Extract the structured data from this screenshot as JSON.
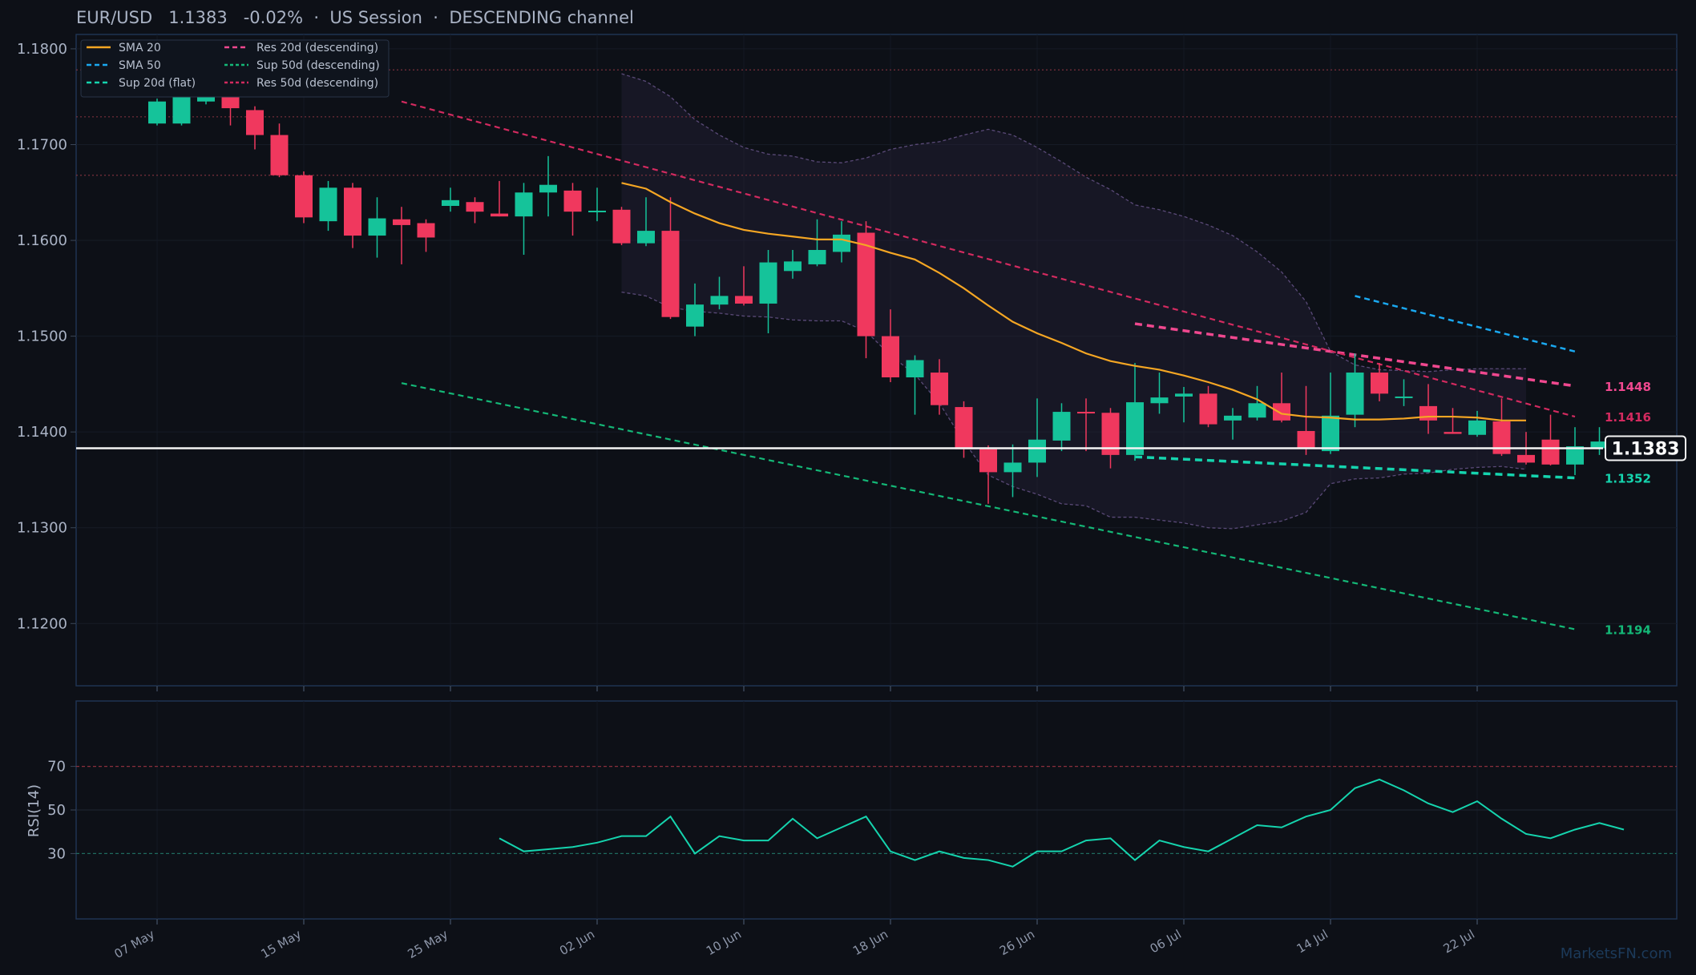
{
  "header": {
    "symbol": "EUR/USD",
    "price": "1.1383",
    "change": "-0.02%",
    "session": "US Session",
    "channel": "DESCENDING channel"
  },
  "watermark": "MarketsFN.com",
  "colors": {
    "bg": "#0d1017",
    "up": "#15c39a",
    "down": "#f0385e",
    "sma20": "#f5a623",
    "sma50": "#1aa8f0",
    "res20": "#f0488f",
    "res50": "#d22a5f",
    "sup20": "#15d4ae",
    "sup50": "#14b877",
    "rsi": "#15d4ae"
  },
  "chart_data": [
    {
      "type": "candlestick",
      "title": "EUR/USD",
      "ylim": [
        1.1135,
        1.1815
      ],
      "yticks": [
        "1.1200",
        "1.1300",
        "1.1400",
        "1.1500",
        "1.1600",
        "1.1700",
        "1.1800"
      ],
      "xticks": [
        {
          "i": 0,
          "label": "07 May"
        },
        {
          "i": 6,
          "label": "15 May"
        },
        {
          "i": 12,
          "label": "25 May"
        },
        {
          "i": 18,
          "label": "02 Jun"
        },
        {
          "i": 24,
          "label": "10 Jun"
        },
        {
          "i": 30,
          "label": "18 Jun"
        },
        {
          "i": 36,
          "label": "26 Jun"
        },
        {
          "i": 42,
          "label": "06 Jul"
        },
        {
          "i": 48,
          "label": "14 Jul"
        },
        {
          "i": 54,
          "label": "22 Jul"
        }
      ],
      "candles": [
        [
          1.1722,
          1.1748,
          1.172,
          1.1745
        ],
        [
          1.1722,
          1.179,
          1.172,
          1.1785
        ],
        [
          1.1745,
          1.179,
          1.1742,
          1.1783
        ],
        [
          1.1778,
          1.179,
          1.172,
          1.1738
        ],
        [
          1.1736,
          1.174,
          1.1695,
          1.171
        ],
        [
          1.171,
          1.1722,
          1.1666,
          1.1668
        ],
        [
          1.1668,
          1.1672,
          1.1618,
          1.1624
        ],
        [
          1.162,
          1.1662,
          1.161,
          1.1655
        ],
        [
          1.1655,
          1.166,
          1.1592,
          1.1605
        ],
        [
          1.1605,
          1.1645,
          1.1582,
          1.1623
        ],
        [
          1.1622,
          1.1635,
          1.1575,
          1.1616
        ],
        [
          1.1618,
          1.1622,
          1.1588,
          1.1603
        ],
        [
          1.1636,
          1.1655,
          1.163,
          1.1642
        ],
        [
          1.164,
          1.1645,
          1.1618,
          1.163
        ],
        [
          1.1628,
          1.1662,
          1.1625,
          1.1625
        ],
        [
          1.1625,
          1.166,
          1.1585,
          1.165
        ],
        [
          1.165,
          1.1688,
          1.1625,
          1.1658
        ],
        [
          1.1652,
          1.166,
          1.1605,
          1.163
        ],
        [
          1.163,
          1.1655,
          1.162,
          1.1631
        ],
        [
          1.1632,
          1.1635,
          1.1595,
          1.1597
        ],
        [
          1.1597,
          1.1645,
          1.1594,
          1.161
        ],
        [
          1.161,
          1.1645,
          1.1518,
          1.152
        ],
        [
          1.151,
          1.1555,
          1.15,
          1.1533
        ],
        [
          1.1533,
          1.1562,
          1.1528,
          1.1542
        ],
        [
          1.1542,
          1.1573,
          1.1532,
          1.1534
        ],
        [
          1.1534,
          1.159,
          1.1503,
          1.1577
        ],
        [
          1.1568,
          1.159,
          1.156,
          1.1578
        ],
        [
          1.1575,
          1.1622,
          1.1573,
          1.159
        ],
        [
          1.1588,
          1.162,
          1.1577,
          1.1606
        ],
        [
          1.1608,
          1.162,
          1.1477,
          1.15
        ],
        [
          1.15,
          1.1528,
          1.1452,
          1.1457
        ],
        [
          1.1457,
          1.148,
          1.1418,
          1.1475
        ],
        [
          1.1462,
          1.1476,
          1.1418,
          1.1428
        ],
        [
          1.1426,
          1.1432,
          1.1373,
          1.1382
        ],
        [
          1.1382,
          1.1386,
          1.1325,
          1.1358
        ],
        [
          1.1358,
          1.1387,
          1.1332,
          1.1368
        ],
        [
          1.1368,
          1.1435,
          1.1353,
          1.1392
        ],
        [
          1.1391,
          1.143,
          1.138,
          1.1421
        ],
        [
          1.1421,
          1.1435,
          1.138,
          1.142
        ],
        [
          1.142,
          1.1425,
          1.1362,
          1.1376
        ],
        [
          1.1376,
          1.1472,
          1.137,
          1.1431
        ],
        [
          1.143,
          1.1462,
          1.1419,
          1.1436
        ],
        [
          1.1437,
          1.1447,
          1.141,
          1.144
        ],
        [
          1.144,
          1.1448,
          1.1405,
          1.1408
        ],
        [
          1.1412,
          1.1425,
          1.1392,
          1.1417
        ],
        [
          1.1415,
          1.1448,
          1.1412,
          1.143
        ],
        [
          1.143,
          1.1462,
          1.141,
          1.1412
        ],
        [
          1.1401,
          1.1448,
          1.1376,
          1.1383
        ],
        [
          1.138,
          1.1462,
          1.1377,
          1.1417
        ],
        [
          1.1418,
          1.1482,
          1.1405,
          1.1462
        ],
        [
          1.1462,
          1.1472,
          1.1432,
          1.144
        ],
        [
          1.1436,
          1.1455,
          1.1427,
          1.1437
        ],
        [
          1.1427,
          1.145,
          1.1398,
          1.1412
        ],
        [
          1.14,
          1.1425,
          1.1398,
          1.1398
        ],
        [
          1.1397,
          1.1422,
          1.1395,
          1.1412
        ],
        [
          1.1411,
          1.1435,
          1.1375,
          1.1377
        ],
        [
          1.1376,
          1.14,
          1.1366,
          1.1368
        ],
        [
          1.1392,
          1.1418,
          1.1365,
          1.1366
        ],
        [
          1.1366,
          1.1405,
          1.1355,
          1.1385
        ],
        [
          1.1383,
          1.1405,
          1.1376,
          1.139
        ]
      ],
      "sma20": {
        "name": "SMA 20",
        "start": 19,
        "values": [
          1.166,
          1.1654,
          1.164,
          1.1628,
          1.1618,
          1.1611,
          1.1607,
          1.1604,
          1.1601,
          1.1601,
          1.1595,
          1.1587,
          1.158,
          1.1566,
          1.155,
          1.1532,
          1.1515,
          1.1503,
          1.1493,
          1.1482,
          1.1474,
          1.1469,
          1.1465,
          1.1459,
          1.1452,
          1.1444,
          1.1434,
          1.1419,
          1.1416,
          1.1415,
          1.1413,
          1.1413,
          1.1414,
          1.1416,
          1.1416,
          1.1415,
          1.1412,
          1.1412
        ]
      },
      "bands": {
        "start": 19,
        "upper": [
          1.1774,
          1.1766,
          1.175,
          1.1726,
          1.171,
          1.1697,
          1.169,
          1.1688,
          1.1682,
          1.1681,
          1.1686,
          1.1695,
          1.17,
          1.1703,
          1.171,
          1.1716,
          1.171,
          1.1697,
          1.1682,
          1.1666,
          1.1653,
          1.1637,
          1.1632,
          1.1625,
          1.1616,
          1.1605,
          1.1588,
          1.1567,
          1.1536,
          1.1484,
          1.147,
          1.1465,
          1.1464,
          1.1463,
          1.1465,
          1.1466,
          1.1466,
          1.1466
        ],
        "lower": [
          1.1546,
          1.1542,
          1.153,
          1.1526,
          1.1524,
          1.1521,
          1.152,
          1.1517,
          1.1516,
          1.1516,
          1.1505,
          1.148,
          1.146,
          1.143,
          1.139,
          1.1355,
          1.1343,
          1.1335,
          1.1325,
          1.1323,
          1.1311,
          1.1311,
          1.1308,
          1.1305,
          1.13,
          1.1299,
          1.1303,
          1.1307,
          1.1316,
          1.1346,
          1.1351,
          1.1352,
          1.1356,
          1.1357,
          1.1361,
          1.1363,
          1.1364,
          1.1361
        ]
      },
      "lines": [
        {
          "name": "SMA 50",
          "from": [
            49,
            1.1542
          ],
          "to": [
            58,
            1.1484
          ],
          "style": "dash"
        },
        {
          "name": "Res 20d (descending)",
          "from": [
            40,
            1.1513
          ],
          "to": [
            58,
            1.1448
          ],
          "style": "dash"
        },
        {
          "name": "Res 50d (descending)",
          "from": [
            10,
            1.1745
          ],
          "to": [
            58,
            1.1416
          ],
          "style": "dash"
        },
        {
          "name": "Sup 20d (flat)",
          "from": [
            40,
            1.1374
          ],
          "to": [
            58,
            1.1352
          ],
          "style": "dash"
        },
        {
          "name": "Sup 50d (descending)",
          "from": [
            10,
            1.1451
          ],
          "to": [
            58,
            1.1194
          ],
          "style": "dash"
        }
      ],
      "hlines": [
        1.1778,
        1.1729,
        1.1668
      ],
      "current": 1.1383,
      "level_labels": [
        "1.1448",
        "1.1416",
        "1.1352",
        "1.1194"
      ],
      "price_label": "1.1383"
    },
    {
      "type": "line",
      "ylabel": "RSI(14)",
      "ylim": [
        0,
        100
      ],
      "yticks": [
        "30",
        "50",
        "70"
      ],
      "start": 14,
      "values": [
        37,
        31,
        32,
        33,
        35,
        38,
        38,
        47,
        30,
        38,
        36,
        36,
        46,
        37,
        42,
        47,
        31,
        27,
        31,
        28,
        27,
        24,
        31,
        31,
        36,
        37,
        27,
        36,
        33,
        31,
        37,
        43,
        42,
        47,
        50,
        60,
        64,
        59,
        53,
        49,
        54,
        46,
        39,
        37,
        41,
        44,
        41
      ]
    }
  ],
  "legend": [
    "SMA 20",
    "SMA 50",
    "Sup 20d (flat)",
    "Res 20d (descending)",
    "Sup 50d (descending)",
    "Res 50d (descending)"
  ]
}
